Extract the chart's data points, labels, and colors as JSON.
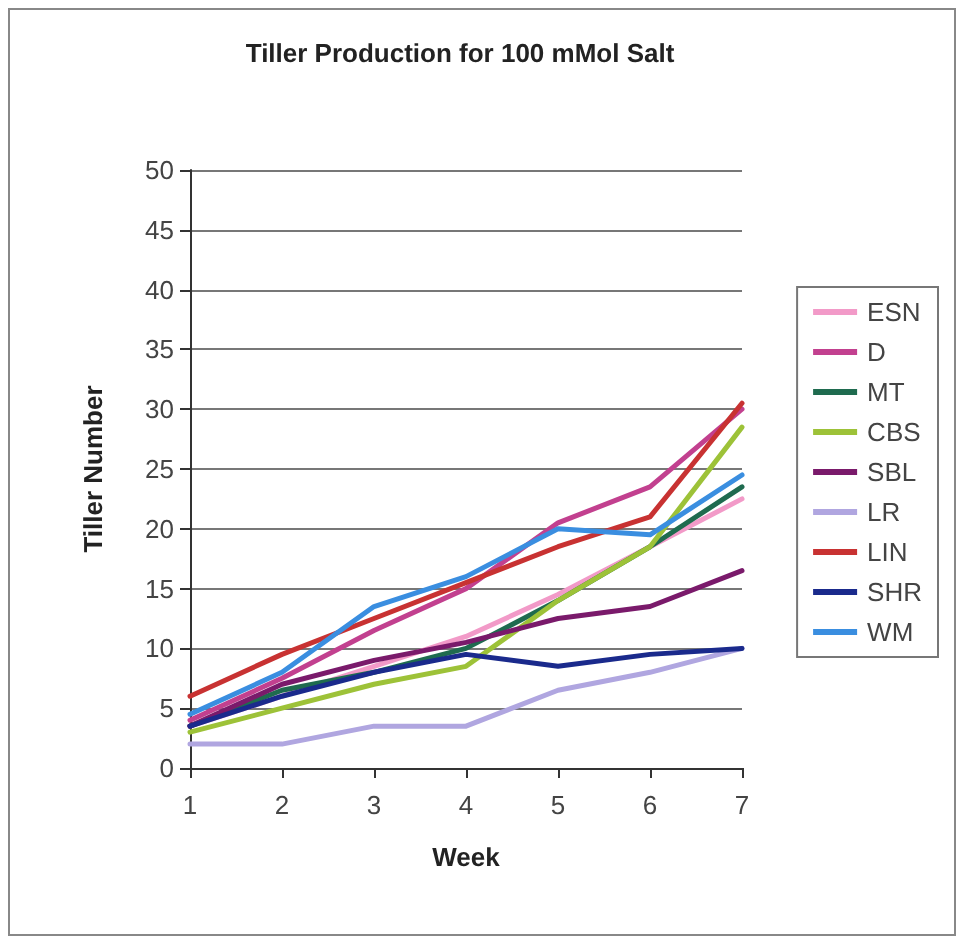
{
  "chart_data": {
    "type": "line",
    "title": "Tiller Production for 100 mMol Salt",
    "xlabel": "Week",
    "ylabel": "Tiller Number",
    "categories": [
      "1",
      "2",
      "3",
      "4",
      "5",
      "6",
      "7"
    ],
    "ylim": [
      0,
      50
    ],
    "yticks": [
      0,
      5,
      10,
      15,
      20,
      25,
      30,
      35,
      40,
      45,
      50
    ],
    "grid": "y",
    "legend": "right",
    "marker": "none",
    "line_style": "solid",
    "series": [
      {
        "name": "ESN",
        "color": "#f29ac8",
        "values": [
          3.5,
          6,
          8.5,
          11,
          14.5,
          18.5,
          22.5
        ]
      },
      {
        "name": "D",
        "color": "#c2408f",
        "values": [
          4,
          7.5,
          11.5,
          15,
          20.5,
          23.5,
          30
        ]
      },
      {
        "name": "MT",
        "color": "#1f6b4f",
        "values": [
          3.5,
          6.5,
          8,
          10,
          14,
          18.5,
          23.5
        ]
      },
      {
        "name": "CBS",
        "color": "#9dc238",
        "values": [
          3,
          5,
          7,
          8.5,
          14,
          18.5,
          28.5
        ]
      },
      {
        "name": "SBL",
        "color": "#7a1a6b",
        "values": [
          3.5,
          7,
          9,
          10.5,
          12.5,
          13.5,
          16.5
        ]
      },
      {
        "name": "LR",
        "color": "#b0a6e0",
        "values": [
          2,
          2,
          3.5,
          3.5,
          6.5,
          8,
          10
        ]
      },
      {
        "name": "LIN",
        "color": "#c83232",
        "values": [
          6,
          9.5,
          12.5,
          15.5,
          18.5,
          21,
          30.5
        ]
      },
      {
        "name": "SHR",
        "color": "#1a2a8c",
        "values": [
          3.5,
          6,
          8,
          9.5,
          8.5,
          9.5,
          10
        ]
      },
      {
        "name": "WM",
        "color": "#3a8ee0",
        "values": [
          4.5,
          8,
          13.5,
          16,
          20,
          19.5,
          24.5
        ]
      }
    ]
  }
}
